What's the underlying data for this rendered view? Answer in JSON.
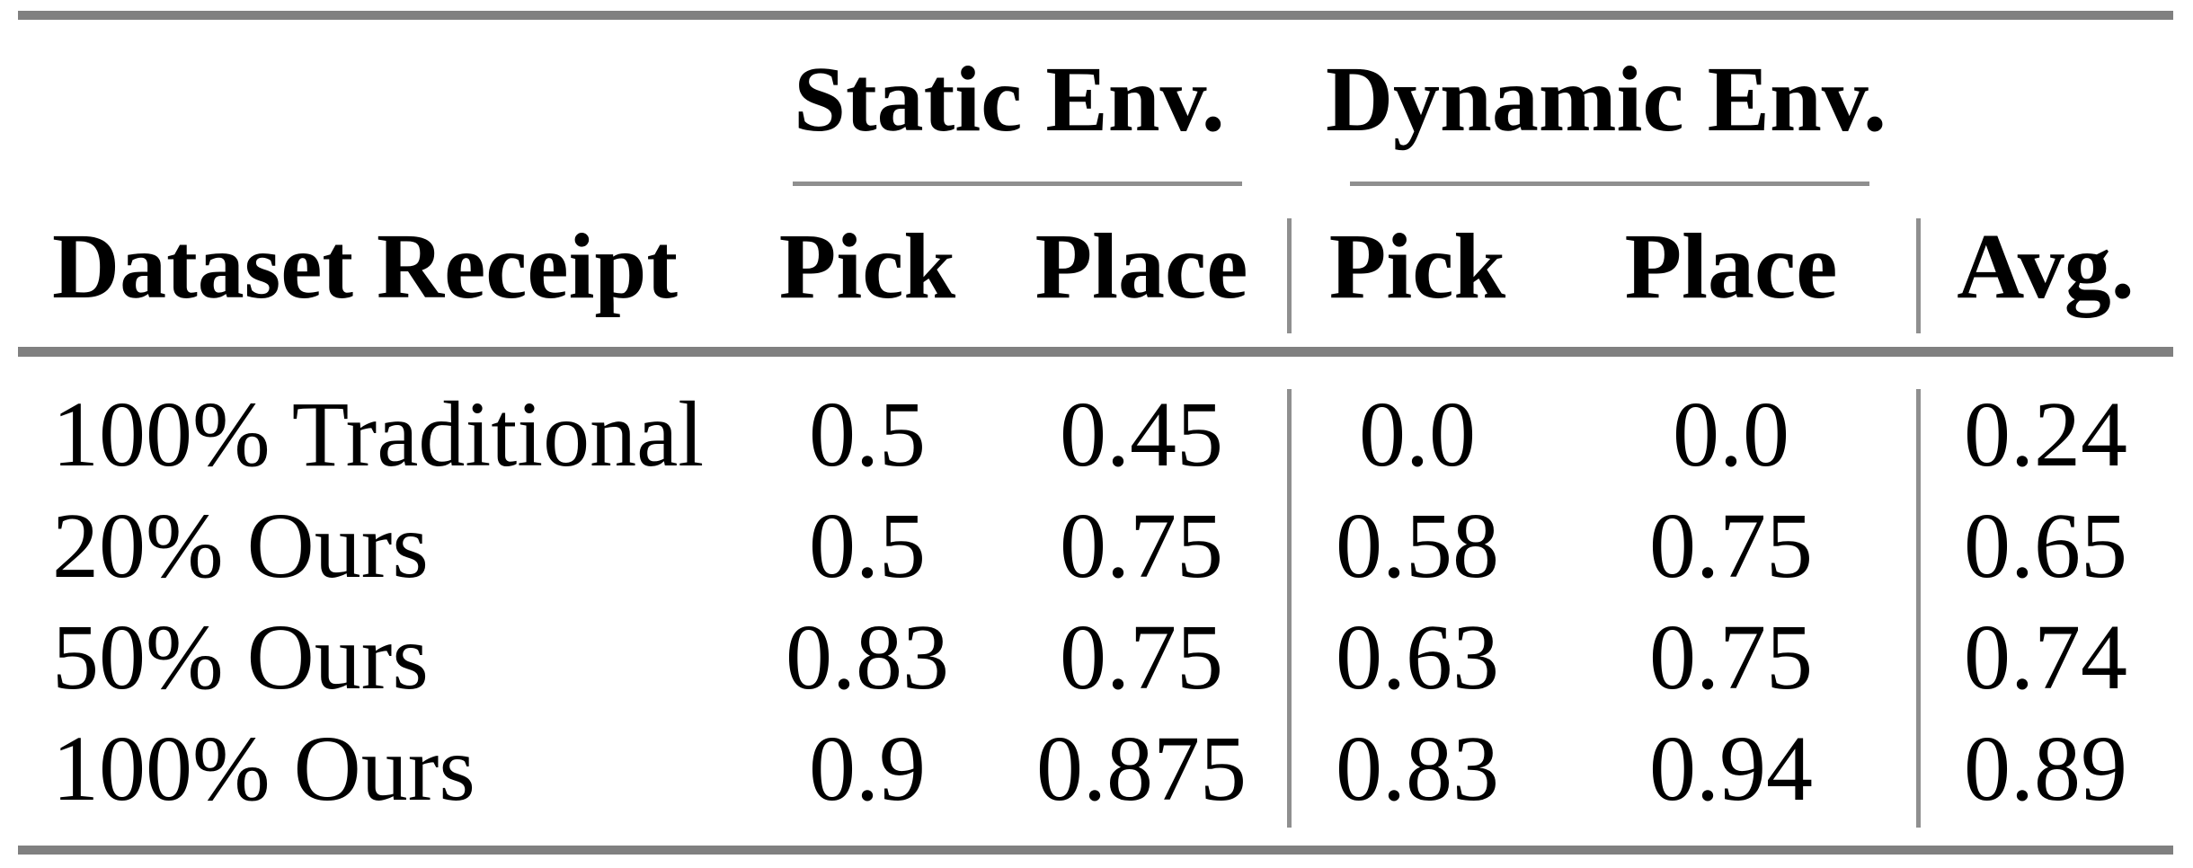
{
  "styles": {
    "page_background": "#ffffff",
    "text_color": "#000000",
    "thick_rule_color": "#808080",
    "thin_rule_color": "#8f8f8f"
  },
  "table": {
    "group_headers": {
      "static": "Static Env.",
      "dynamic": "Dynamic Env."
    },
    "column_headers": {
      "dataset": "Dataset Receipt",
      "static_pick": "Pick",
      "static_place": "Place",
      "dynamic_pick": "Pick",
      "dynamic_place": "Place",
      "avg": "Avg."
    },
    "rows": [
      {
        "label": "100% Traditional",
        "static_pick": "0.5",
        "static_place": "0.45",
        "dynamic_pick": "0.0",
        "dynamic_place": "0.0",
        "avg": "0.24"
      },
      {
        "label": "20% Ours",
        "static_pick": "0.5",
        "static_place": "0.75",
        "dynamic_pick": "0.58",
        "dynamic_place": "0.75",
        "avg": "0.65"
      },
      {
        "label": "50% Ours",
        "static_pick": "0.83",
        "static_place": "0.75",
        "dynamic_pick": "0.63",
        "dynamic_place": "0.75",
        "avg": "0.74"
      },
      {
        "label": "100% Ours",
        "static_pick": "0.9",
        "static_place": "0.875",
        "dynamic_pick": "0.83",
        "dynamic_place": "0.94",
        "avg": "0.89"
      }
    ]
  },
  "chart_data": {
    "type": "table",
    "columns": [
      "Dataset Receipt",
      "Static Env. Pick",
      "Static Env. Place",
      "Dynamic Env. Pick",
      "Dynamic Env. Place",
      "Avg."
    ],
    "rows": [
      [
        "100% Traditional",
        0.5,
        0.45,
        0.0,
        0.0,
        0.24
      ],
      [
        "20% Ours",
        0.5,
        0.75,
        0.58,
        0.75,
        0.65
      ],
      [
        "50% Ours",
        0.83,
        0.75,
        0.63,
        0.75,
        0.74
      ],
      [
        "100% Ours",
        0.9,
        0.875,
        0.83,
        0.94,
        0.89
      ]
    ]
  }
}
